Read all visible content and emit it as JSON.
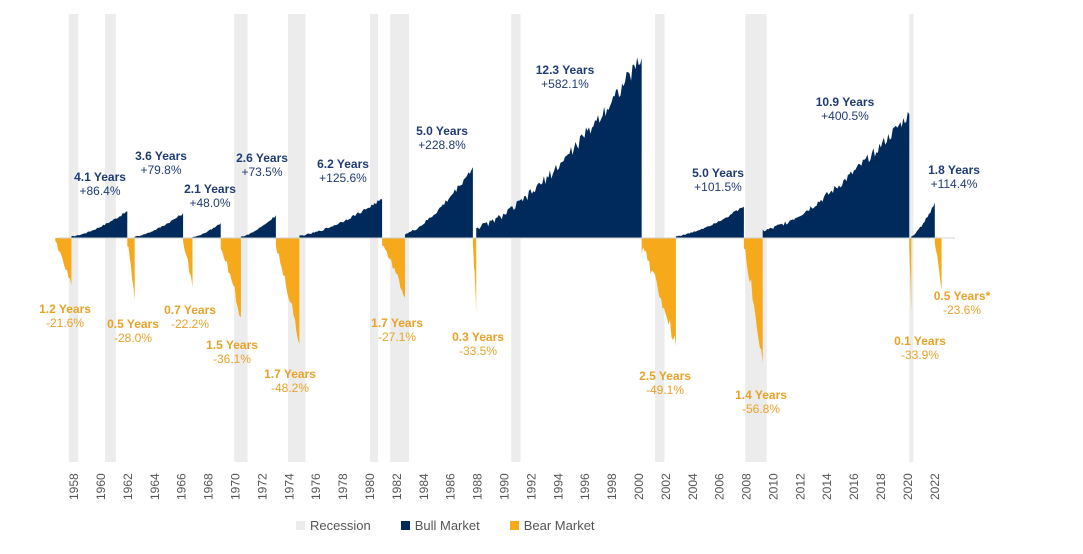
{
  "colors": {
    "bull": "#002a5c",
    "bear": "#f5a91b",
    "recession": "#ececec",
    "bull_text": "#1f3b73",
    "bear_text": "#e8a228"
  },
  "chart_data": {
    "type": "area",
    "x_range": [
      1956.8,
      2023.5
    ],
    "x_ticks": [
      1958,
      1960,
      1962,
      1964,
      1966,
      1968,
      1970,
      1972,
      1974,
      1976,
      1978,
      1980,
      1982,
      1984,
      1986,
      1988,
      1990,
      1992,
      1994,
      1996,
      1998,
      2000,
      2002,
      2004,
      2006,
      2008,
      2010,
      2012,
      2014,
      2016,
      2018,
      2020,
      2022
    ],
    "recessions": [
      [
        1957.6,
        1958.3
      ],
      [
        1960.3,
        1961.1
      ],
      [
        1969.9,
        1970.9
      ],
      [
        1973.9,
        1975.2
      ],
      [
        1980.0,
        1980.6
      ],
      [
        1981.5,
        1982.9
      ],
      [
        1990.5,
        1991.2
      ],
      [
        2001.2,
        2001.9
      ],
      [
        2007.9,
        2009.5
      ],
      [
        2020.1,
        2020.4
      ]
    ],
    "bull_markets": [
      {
        "start": 1957.8,
        "end": 1961.95,
        "gain": 86.4,
        "duration_label": "4.1 Years",
        "gain_label": "+86.4%"
      },
      {
        "start": 1962.5,
        "end": 1966.1,
        "gain": 79.8,
        "duration_label": "3.6 Years",
        "gain_label": "+79.8%"
      },
      {
        "start": 1966.8,
        "end": 1968.9,
        "gain": 48.0,
        "duration_label": "2.1 Years",
        "gain_label": "+48.0%"
      },
      {
        "start": 1970.4,
        "end": 1973.0,
        "gain": 73.5,
        "duration_label": "2.6 Years",
        "gain_label": "+73.5%"
      },
      {
        "start": 1974.75,
        "end": 1980.9,
        "gain": 125.6,
        "duration_label": "6.2 Years",
        "gain_label": "+125.6%"
      },
      {
        "start": 1982.6,
        "end": 1987.65,
        "gain": 228.8,
        "duration_label": "5.0 Years",
        "gain_label": "+228.8%"
      },
      {
        "start": 1987.9,
        "end": 2000.2,
        "gain": 582.1,
        "duration_label": "12.3 Years",
        "gain_label": "+582.1%"
      },
      {
        "start": 2002.75,
        "end": 2007.8,
        "gain": 101.5,
        "duration_label": "5.0 Years",
        "gain_label": "+101.5%"
      },
      {
        "start": 2009.2,
        "end": 2020.1,
        "gain": 400.5,
        "duration_label": "10.9 Years",
        "gain_label": "+400.5%"
      },
      {
        "start": 2020.25,
        "end": 2022.0,
        "gain": 114.4,
        "duration_label": "1.8 Years",
        "gain_label": "+114.4%"
      }
    ],
    "bear_markets": [
      {
        "start": 1956.6,
        "end": 1957.8,
        "loss": -21.6,
        "duration_label": "1.2 Years",
        "loss_label": "-21.6%"
      },
      {
        "start": 1961.95,
        "end": 1962.5,
        "loss": -28.0,
        "duration_label": "0.5 Years",
        "loss_label": "-28.0%"
      },
      {
        "start": 1966.1,
        "end": 1966.8,
        "loss": -22.2,
        "duration_label": "0.7 Years",
        "loss_label": "-22.2%"
      },
      {
        "start": 1968.9,
        "end": 1970.4,
        "loss": -36.1,
        "duration_label": "1.5 Years",
        "loss_label": "-36.1%"
      },
      {
        "start": 1973.0,
        "end": 1974.75,
        "loss": -48.2,
        "duration_label": "1.7 Years",
        "loss_label": "-48.2%"
      },
      {
        "start": 1980.9,
        "end": 1982.6,
        "loss": -27.1,
        "duration_label": "1.7 Years",
        "loss_label": "-27.1%"
      },
      {
        "start": 1987.65,
        "end": 1987.9,
        "loss": -33.5,
        "duration_label": "0.3 Years",
        "loss_label": "-33.5%"
      },
      {
        "start": 2000.2,
        "end": 2002.75,
        "loss": -49.1,
        "duration_label": "2.5 Years",
        "loss_label": "-49.1%"
      },
      {
        "start": 2007.8,
        "end": 2009.2,
        "loss": -56.8,
        "duration_label": "1.4 Years",
        "loss_label": "-56.8%"
      },
      {
        "start": 2020.1,
        "end": 2020.25,
        "loss": -33.9,
        "duration_label": "0.1 Years",
        "loss_label": "-33.9%"
      },
      {
        "start": 2022.0,
        "end": 2022.5,
        "loss": -23.6,
        "duration_label": "0.5 Years*",
        "loss_label": "-23.6%"
      }
    ]
  },
  "legend": {
    "recession": "Recession",
    "bull": "Bull Market",
    "bear": "Bear Market"
  }
}
